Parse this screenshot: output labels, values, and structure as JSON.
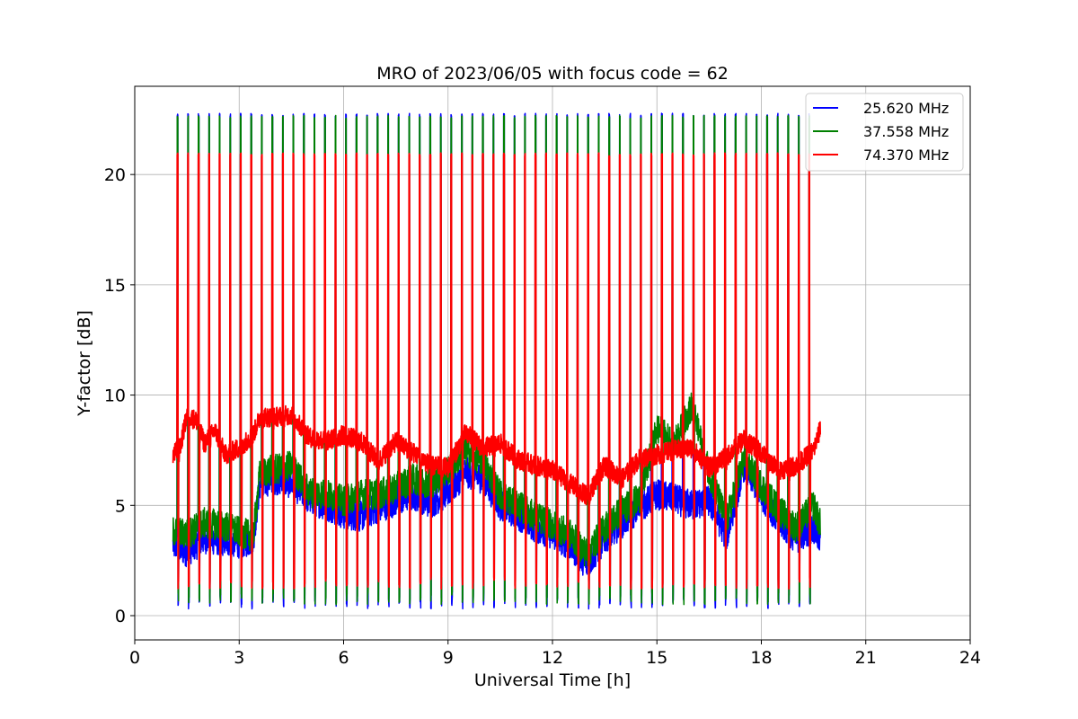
{
  "chart_data": {
    "type": "line",
    "title": "MRO of 2023/06/05 with focus code = 62",
    "xlabel": "Universal Time [h]",
    "ylabel": "Y-factor [dB]",
    "xlim": [
      0,
      24
    ],
    "ylim": [
      -1.1,
      24
    ],
    "xticks": [
      0,
      3,
      6,
      9,
      12,
      15,
      18,
      21,
      24
    ],
    "yticks": [
      0,
      5,
      10,
      15,
      20
    ],
    "grid": true,
    "legend_position": "top-right",
    "time_range": [
      1.1,
      19.7
    ],
    "pulse_count": 61,
    "series": [
      {
        "name": "25.620 MHz",
        "color": "#0000ff",
        "pulse_peak": 22.7,
        "pulse_floor": 0.3,
        "baseline": [
          [
            1.1,
            3.2
          ],
          [
            1.5,
            2.9
          ],
          [
            2.0,
            3.5
          ],
          [
            2.5,
            3.4
          ],
          [
            3.0,
            3.3
          ],
          [
            3.4,
            3.4
          ],
          [
            3.6,
            6.0
          ],
          [
            4.0,
            6.2
          ],
          [
            4.5,
            6.0
          ],
          [
            5.0,
            5.3
          ],
          [
            5.5,
            5.0
          ],
          [
            6.0,
            4.6
          ],
          [
            6.5,
            4.5
          ],
          [
            7.0,
            4.9
          ],
          [
            7.5,
            5.2
          ],
          [
            8.0,
            5.5
          ],
          [
            8.5,
            5.1
          ],
          [
            9.0,
            5.6
          ],
          [
            9.5,
            6.5
          ],
          [
            10.0,
            6.2
          ],
          [
            10.5,
            5.0
          ],
          [
            11.0,
            4.6
          ],
          [
            11.5,
            4.0
          ],
          [
            12.0,
            3.7
          ],
          [
            12.5,
            3.2
          ],
          [
            13.0,
            2.3
          ],
          [
            13.5,
            3.5
          ],
          [
            14.0,
            4.2
          ],
          [
            14.5,
            4.9
          ],
          [
            15.0,
            5.5
          ],
          [
            15.5,
            5.3
          ],
          [
            16.0,
            5.0
          ],
          [
            16.5,
            5.2
          ],
          [
            17.0,
            3.6
          ],
          [
            17.5,
            6.8
          ],
          [
            18.0,
            5.5
          ],
          [
            18.5,
            4.3
          ],
          [
            19.0,
            3.5
          ],
          [
            19.5,
            4.0
          ],
          [
            19.7,
            3.3
          ]
        ]
      },
      {
        "name": "37.558 MHz",
        "color": "#008000",
        "pulse_peak": 22.6,
        "pulse_floor": 0.5,
        "baseline": [
          [
            1.1,
            3.8
          ],
          [
            1.5,
            3.7
          ],
          [
            2.0,
            4.2
          ],
          [
            2.5,
            4.1
          ],
          [
            3.0,
            3.8
          ],
          [
            3.4,
            3.6
          ],
          [
            3.6,
            6.5
          ],
          [
            4.0,
            6.6
          ],
          [
            4.5,
            6.8
          ],
          [
            5.0,
            5.6
          ],
          [
            5.5,
            5.5
          ],
          [
            6.0,
            5.2
          ],
          [
            6.5,
            5.5
          ],
          [
            7.0,
            5.5
          ],
          [
            7.5,
            5.8
          ],
          [
            8.0,
            6.2
          ],
          [
            8.5,
            6.0
          ],
          [
            9.0,
            6.6
          ],
          [
            9.5,
            7.5
          ],
          [
            10.0,
            7.0
          ],
          [
            10.5,
            5.5
          ],
          [
            11.0,
            5.0
          ],
          [
            11.5,
            4.5
          ],
          [
            12.0,
            4.1
          ],
          [
            12.5,
            3.7
          ],
          [
            13.0,
            2.8
          ],
          [
            13.5,
            4.0
          ],
          [
            14.0,
            4.8
          ],
          [
            14.5,
            5.3
          ],
          [
            15.0,
            8.5
          ],
          [
            15.5,
            7.8
          ],
          [
            16.0,
            9.5
          ],
          [
            16.5,
            6.5
          ],
          [
            17.0,
            4.3
          ],
          [
            17.5,
            7.1
          ],
          [
            18.0,
            5.9
          ],
          [
            18.5,
            4.8
          ],
          [
            19.0,
            4.0
          ],
          [
            19.5,
            5.0
          ],
          [
            19.7,
            4.1
          ]
        ]
      },
      {
        "name": "74.370 MHz",
        "color": "#ff0000",
        "pulse_peak": 20.9,
        "pulse_floor": 1.2,
        "baseline": [
          [
            1.1,
            7.3
          ],
          [
            1.3,
            7.6
          ],
          [
            1.5,
            9.1
          ],
          [
            1.8,
            8.8
          ],
          [
            2.0,
            7.8
          ],
          [
            2.3,
            8.4
          ],
          [
            2.6,
            7.3
          ],
          [
            3.0,
            7.6
          ],
          [
            3.4,
            8.2
          ],
          [
            3.6,
            9.0
          ],
          [
            4.0,
            9.0
          ],
          [
            4.5,
            9.1
          ],
          [
            5.0,
            8.1
          ],
          [
            5.5,
            7.9
          ],
          [
            6.0,
            8.2
          ],
          [
            6.5,
            7.9
          ],
          [
            7.0,
            7.0
          ],
          [
            7.5,
            7.9
          ],
          [
            8.0,
            7.4
          ],
          [
            8.5,
            6.8
          ],
          [
            9.0,
            6.7
          ],
          [
            9.5,
            8.3
          ],
          [
            10.0,
            7.6
          ],
          [
            10.5,
            7.8
          ],
          [
            11.0,
            7.1
          ],
          [
            11.5,
            6.8
          ],
          [
            12.0,
            6.6
          ],
          [
            12.5,
            6.0
          ],
          [
            13.0,
            5.4
          ],
          [
            13.5,
            6.8
          ],
          [
            14.0,
            6.2
          ],
          [
            14.5,
            7.1
          ],
          [
            15.0,
            7.3
          ],
          [
            15.5,
            7.5
          ],
          [
            16.0,
            7.6
          ],
          [
            16.5,
            6.7
          ],
          [
            17.0,
            7.2
          ],
          [
            17.5,
            8.0
          ],
          [
            18.0,
            7.4
          ],
          [
            18.5,
            6.6
          ],
          [
            19.0,
            6.8
          ],
          [
            19.5,
            7.5
          ],
          [
            19.7,
            8.5
          ]
        ]
      }
    ]
  }
}
